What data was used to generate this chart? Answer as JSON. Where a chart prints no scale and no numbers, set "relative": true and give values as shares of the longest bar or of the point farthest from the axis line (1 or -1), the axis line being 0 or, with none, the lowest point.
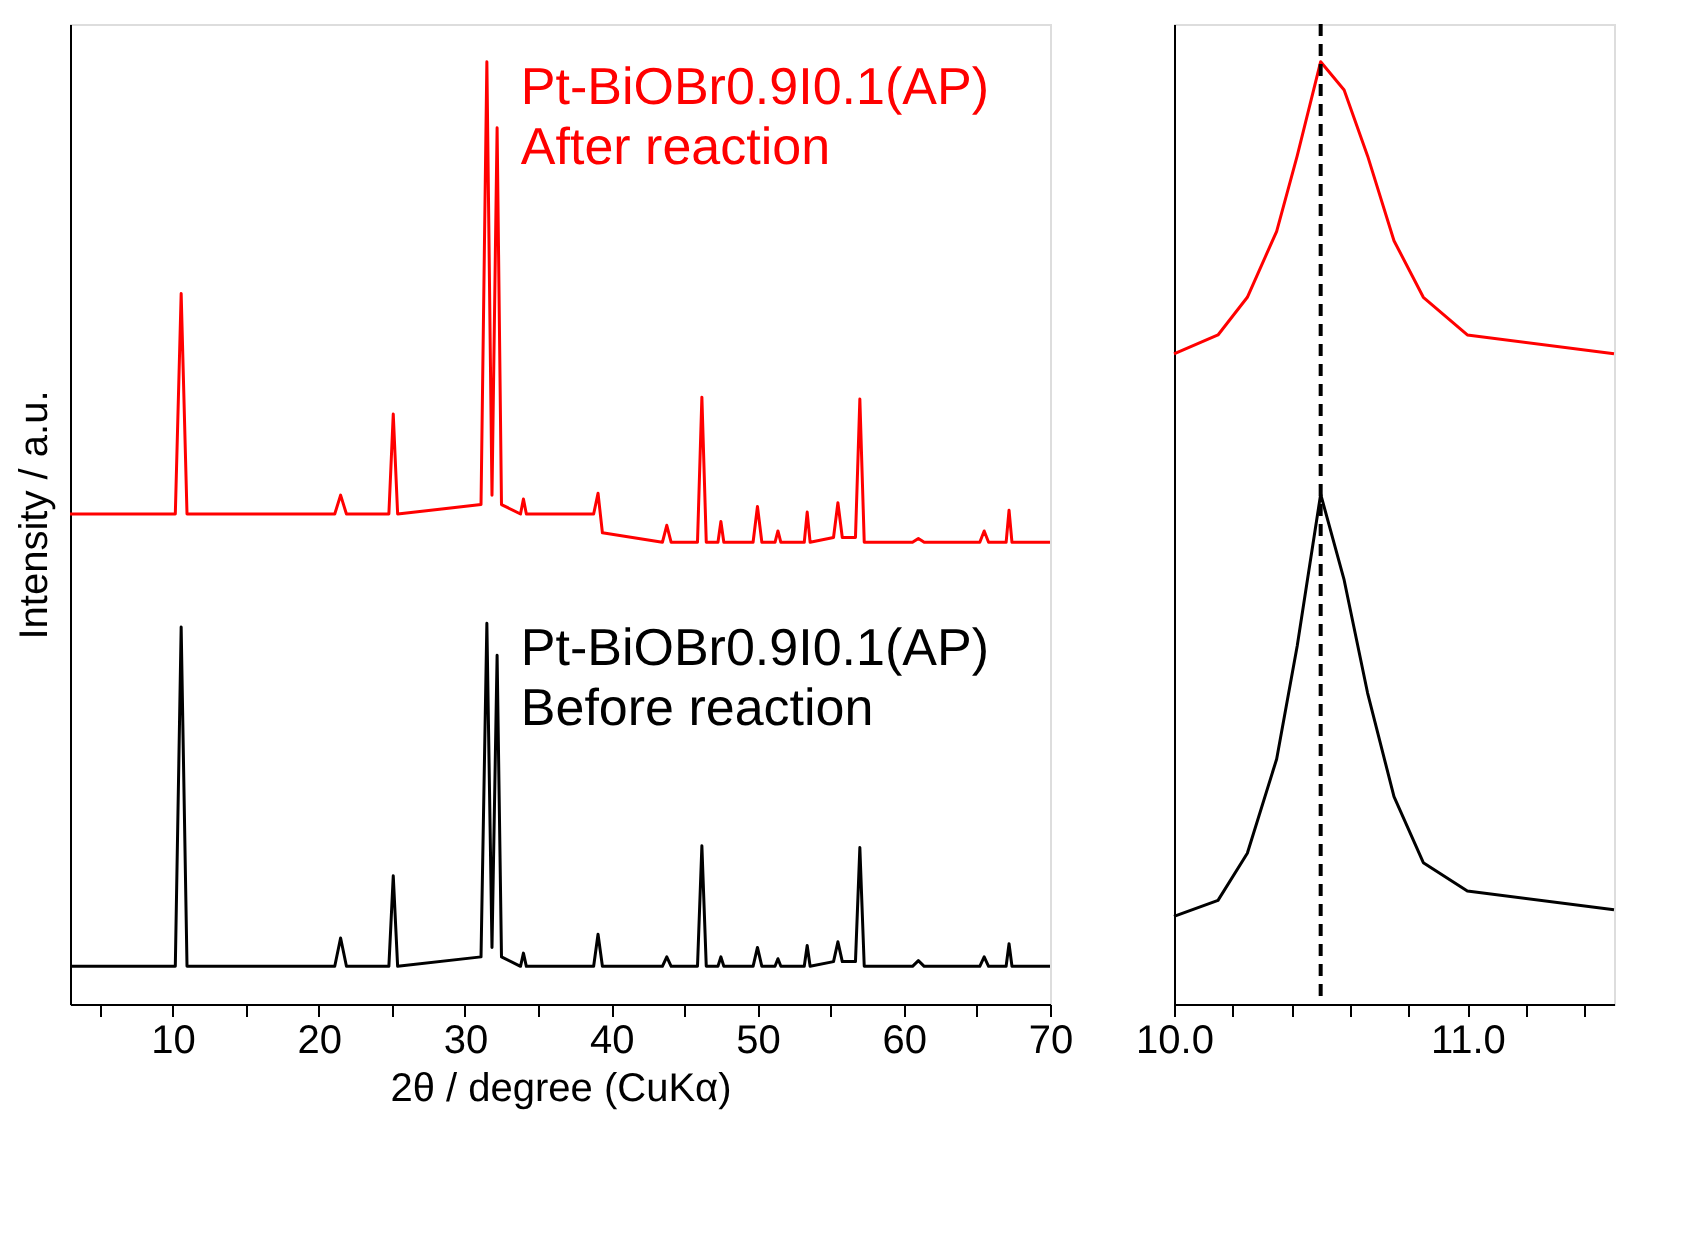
{
  "chart_data": [
    {
      "type": "line",
      "relative": true,
      "xlabel": "2θ / degree (CuKα)",
      "ylabel": "Intensity / a.u.",
      "xlim": [
        3,
        70
      ],
      "xticks": [
        {
          "value": 5,
          "label": null
        },
        10,
        {
          "value": 15,
          "label": null
        },
        20,
        {
          "value": 25,
          "label": null
        },
        30,
        {
          "value": 35,
          "label": null
        },
        40,
        {
          "value": 45,
          "label": null
        },
        50,
        {
          "value": 55,
          "label": null
        },
        60,
        {
          "value": 65,
          "label": null
        },
        70
      ],
      "tick_labels": "x",
      "grid": false,
      "legend": false,
      "marker": "none",
      "line_style": "solid",
      "series": [
        {
          "name": "Pt-BiOBr0.9I0.1(AP)\nAfter reaction",
          "color": "#ff0000",
          "x": [
            3,
            10.2,
            10.6,
            11.0,
            21.1,
            21.5,
            21.9,
            24.8,
            25.1,
            25.4,
            31.1,
            31.5,
            31.85,
            32.2,
            32.5,
            33.8,
            34.0,
            34.2,
            38.8,
            39.1,
            39.4,
            43.5,
            43.8,
            44.1,
            45.9,
            46.2,
            46.5,
            47.3,
            47.5,
            47.7,
            49.7,
            50.0,
            50.3,
            51.2,
            51.4,
            51.6,
            53.2,
            53.4,
            53.6,
            55.2,
            55.5,
            55.8,
            56.7,
            57.0,
            57.3,
            60.6,
            61.0,
            61.4,
            65.2,
            65.5,
            65.8,
            67.0,
            67.2,
            67.4,
            70
          ],
          "values": [
            0.52,
            0.52,
            0.754,
            0.52,
            0.52,
            0.54,
            0.52,
            0.52,
            0.626,
            0.52,
            0.53,
            1.0,
            0.54,
            0.93,
            0.53,
            0.52,
            0.536,
            0.52,
            0.52,
            0.542,
            0.5,
            0.49,
            0.508,
            0.49,
            0.49,
            0.644,
            0.49,
            0.49,
            0.512,
            0.49,
            0.49,
            0.528,
            0.49,
            0.49,
            0.502,
            0.49,
            0.49,
            0.522,
            0.49,
            0.495,
            0.532,
            0.495,
            0.495,
            0.642,
            0.49,
            0.49,
            0.494,
            0.49,
            0.49,
            0.502,
            0.49,
            0.49,
            0.524,
            0.49,
            0.49
          ]
        },
        {
          "name": "Pt-BiOBr0.9I0.1(AP)\nBefore reaction",
          "color": "#000000",
          "x": [
            3,
            10.2,
            10.6,
            11.0,
            21.1,
            21.5,
            21.9,
            24.8,
            25.1,
            25.4,
            31.1,
            31.5,
            31.85,
            32.2,
            32.5,
            33.8,
            34.0,
            34.2,
            38.8,
            39.1,
            39.4,
            43.5,
            43.8,
            44.1,
            45.9,
            46.2,
            46.5,
            47.3,
            47.5,
            47.7,
            49.7,
            50.0,
            50.3,
            51.2,
            51.4,
            51.6,
            53.2,
            53.4,
            53.6,
            55.2,
            55.5,
            55.8,
            56.7,
            57.0,
            57.3,
            60.6,
            61.0,
            61.4,
            65.2,
            65.5,
            65.8,
            67.0,
            67.2,
            67.4,
            70
          ],
          "values": [
            0.04,
            0.04,
            0.4,
            0.04,
            0.04,
            0.07,
            0.04,
            0.04,
            0.136,
            0.04,
            0.05,
            0.404,
            0.06,
            0.37,
            0.05,
            0.04,
            0.054,
            0.04,
            0.04,
            0.074,
            0.04,
            0.04,
            0.05,
            0.04,
            0.04,
            0.168,
            0.04,
            0.04,
            0.05,
            0.04,
            0.04,
            0.06,
            0.04,
            0.04,
            0.048,
            0.04,
            0.04,
            0.062,
            0.04,
            0.045,
            0.066,
            0.045,
            0.045,
            0.166,
            0.04,
            0.04,
            0.046,
            0.04,
            0.04,
            0.05,
            0.04,
            0.04,
            0.064,
            0.04,
            0.04
          ]
        }
      ]
    },
    {
      "type": "line",
      "relative": true,
      "xlim": [
        10.0,
        11.5
      ],
      "xticks": [
        {
          "value": 10,
          "label": "10.0"
        },
        {
          "value": 10.2,
          "label": null
        },
        {
          "value": 10.4,
          "label": null
        },
        {
          "value": 10.6,
          "label": null
        },
        {
          "value": 10.8,
          "label": null
        },
        {
          "value": 11,
          "label": "11.0"
        },
        {
          "value": 11.2,
          "label": null
        },
        {
          "value": 11.4,
          "label": null
        }
      ],
      "tick_labels": "x",
      "grid": false,
      "legend": false,
      "marker": "none",
      "line_style": "solid",
      "ref_lines": [
        {
          "axis": "x",
          "value": 10.5,
          "color": "#000000",
          "line_style": "dashed"
        }
      ],
      "series": [
        {
          "color": "#ff0000",
          "x": [
            10.0,
            10.15,
            10.25,
            10.35,
            10.42,
            10.5,
            10.58,
            10.66,
            10.75,
            10.85,
            11.0,
            11.5
          ],
          "values": [
            0.69,
            0.71,
            0.75,
            0.82,
            0.9,
            1.0,
            0.97,
            0.9,
            0.81,
            0.75,
            0.71,
            0.69
          ]
        },
        {
          "color": "#000000",
          "x": [
            10.0,
            10.15,
            10.25,
            10.35,
            10.42,
            10.5,
            10.58,
            10.66,
            10.75,
            10.85,
            11.0,
            11.5
          ],
          "values": [
            0.093,
            0.11,
            0.16,
            0.26,
            0.38,
            0.541,
            0.45,
            0.33,
            0.22,
            0.15,
            0.12,
            0.1
          ]
        }
      ]
    }
  ]
}
